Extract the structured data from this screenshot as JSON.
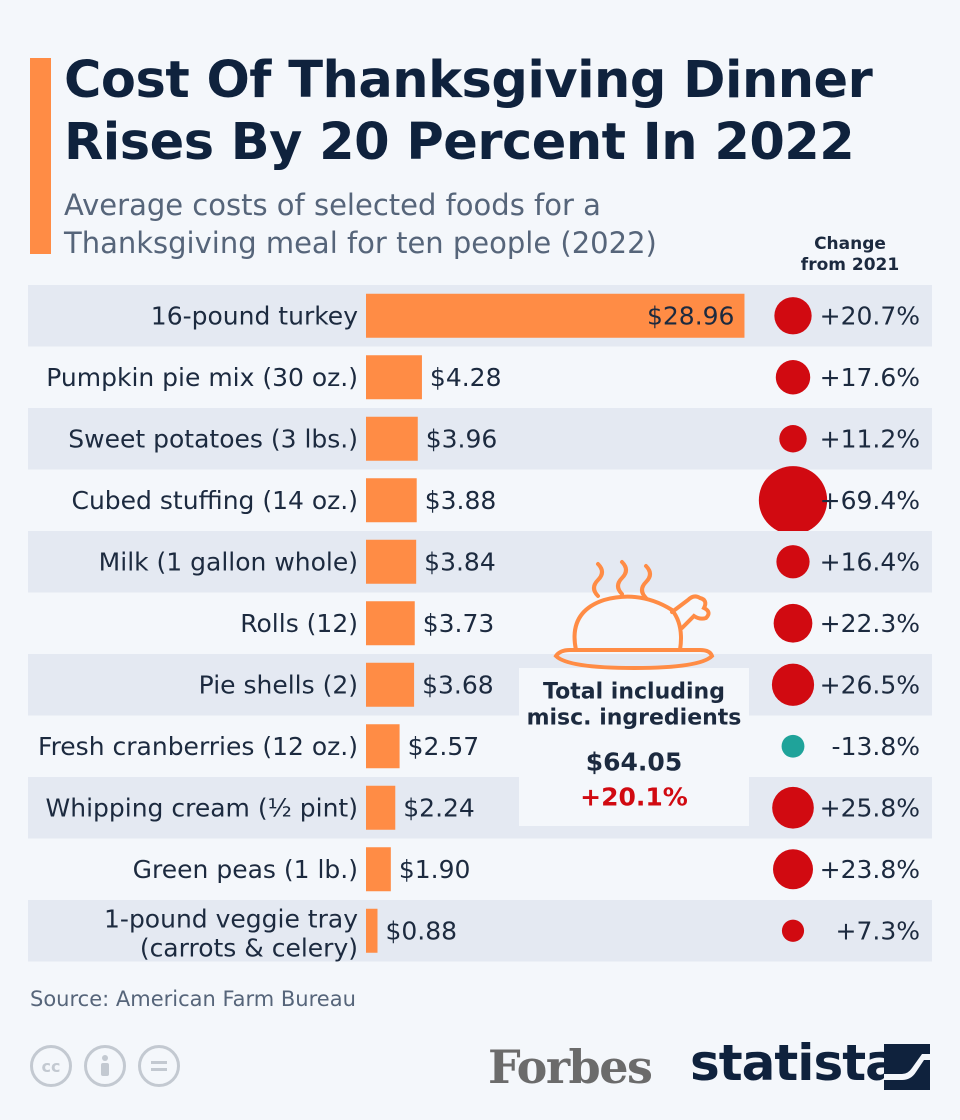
{
  "header": {
    "title": "Cost Of Thanksgiving Dinner Rises By 20 Percent In 2022",
    "subtitle": "Average costs of selected foods for a Thanksgiving meal for ten people (2022)",
    "change_header_line1": "Change",
    "change_header_line2": "from 2021"
  },
  "colors": {
    "accent": "#ff8c45",
    "bar": "#ff8c45",
    "increase": "#d10a11",
    "decrease": "#1fa39a",
    "row_band": "#e4e9f2"
  },
  "chart_data": {
    "type": "bar",
    "orientation": "horizontal",
    "categories": [
      "16-pound turkey",
      "Pumpkin pie mix (30 oz.)",
      "Sweet potatoes (3 lbs.)",
      "Cubed stuffing (14 oz.)",
      "Milk (1 gallon whole)",
      "Rolls (12)",
      "Pie shells (2)",
      "Fresh cranberries (12 oz.)",
      "Whipping cream (½ pint)",
      "Green peas (1 lb.)",
      "1-pound veggie tray|(carrots & celery)"
    ],
    "values": [
      28.96,
      4.28,
      3.96,
      3.88,
      3.84,
      3.73,
      3.68,
      2.57,
      2.24,
      1.9,
      0.88
    ],
    "value_labels": [
      "$28.96",
      "$4.28",
      "$3.96",
      "$3.88",
      "$3.84",
      "$3.73",
      "$3.68",
      "$2.57",
      "$2.24",
      "$1.90",
      "$0.88"
    ],
    "change_pct": [
      20.7,
      17.6,
      11.2,
      69.4,
      16.4,
      22.3,
      26.5,
      -13.8,
      25.8,
      23.8,
      7.3
    ],
    "change_labels": [
      "+20.7%",
      "+17.6%",
      "+11.2%",
      "+69.4%",
      "+16.4%",
      "+22.3%",
      "+26.5%",
      "-13.8%",
      "+25.8%",
      "+23.8%",
      "+7.3%"
    ],
    "xlim": [
      0,
      29
    ],
    "grid": false,
    "legend": "none"
  },
  "total_box": {
    "label_line1": "Total including",
    "label_line2": "misc. ingredients",
    "value": "$64.05",
    "change": "+20.1%",
    "icon": "roast-turkey-icon"
  },
  "footer": {
    "source": "Source: American Farm Bureau",
    "license_icons": [
      "cc-icon",
      "attribution-icon",
      "no-derivatives-icon"
    ],
    "forbes_logo": "Forbes",
    "statista_logo": "statista"
  }
}
